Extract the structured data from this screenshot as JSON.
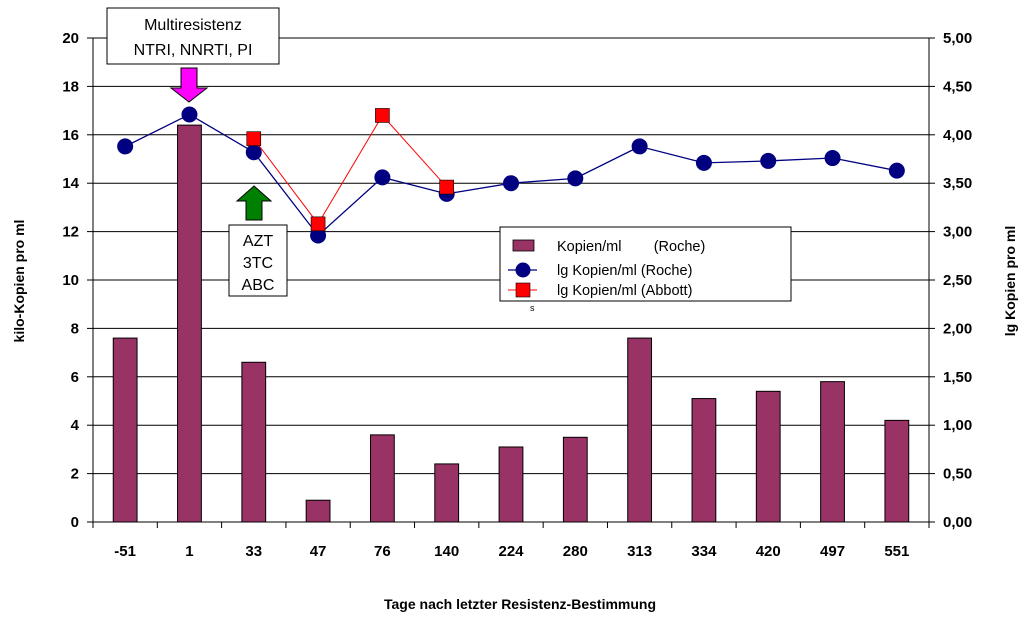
{
  "colors": {
    "bar": "#993366",
    "roche_line": "#000080",
    "abbott_line": "#ff0000",
    "abbott_marker": "#ff0000",
    "arrow_top": "#ff00ff",
    "arrow_bottom": "#008000"
  },
  "chart_data": {
    "type": "bar+line",
    "categories": [
      "-51",
      "1",
      "33",
      "47",
      "76",
      "140",
      "224",
      "280",
      "313",
      "334",
      "420",
      "497",
      "551"
    ],
    "xlabel": "Tage nach letzter Resistenz-Bestimmung",
    "ylabel_left": "kilo-Kopien pro ml",
    "ylabel_right": "lg Kopien pro ml",
    "ylim_left": [
      0,
      20
    ],
    "ylim_right": [
      0,
      5
    ],
    "yticks_left": [
      "0",
      "2",
      "4",
      "6",
      "8",
      "10",
      "12",
      "14",
      "16",
      "18",
      "20"
    ],
    "yticks_right": [
      "0,00",
      "0,50",
      "1,00",
      "1,50",
      "2,00",
      "2,50",
      "3,00",
      "3,50",
      "4,00",
      "4,50",
      "5,00"
    ],
    "grid": "horizontal",
    "series": [
      {
        "name": "Kopien/ml        (Roche)",
        "type": "bar",
        "axis": "left",
        "values": [
          7.6,
          16.4,
          6.6,
          0.9,
          3.6,
          2.4,
          3.1,
          3.5,
          7.6,
          5.1,
          5.4,
          5.8,
          4.2
        ]
      },
      {
        "name": "lg Kopien/ml (Roche)",
        "type": "line",
        "marker": "circle",
        "axis": "right",
        "values": [
          3.88,
          4.21,
          3.82,
          2.96,
          3.56,
          3.39,
          3.5,
          3.55,
          3.88,
          3.71,
          3.73,
          3.76,
          3.63
        ]
      },
      {
        "name": "lg Kopien/ml (Abbott)",
        "type": "line",
        "marker": "square",
        "axis": "right",
        "values": [
          null,
          null,
          3.96,
          3.08,
          4.2,
          3.46,
          null,
          null,
          null,
          null,
          null,
          null,
          null
        ]
      }
    ],
    "legend_position": "center-right",
    "annotations": [
      {
        "lines": [
          "Multiresistenz",
          "NTRI, NNRTI, PI"
        ],
        "arrow": "down",
        "category": "1"
      },
      {
        "lines": [
          "AZT",
          "3TC",
          "ABC"
        ],
        "arrow": "up",
        "category": "33"
      }
    ],
    "stray_mark": "s"
  }
}
